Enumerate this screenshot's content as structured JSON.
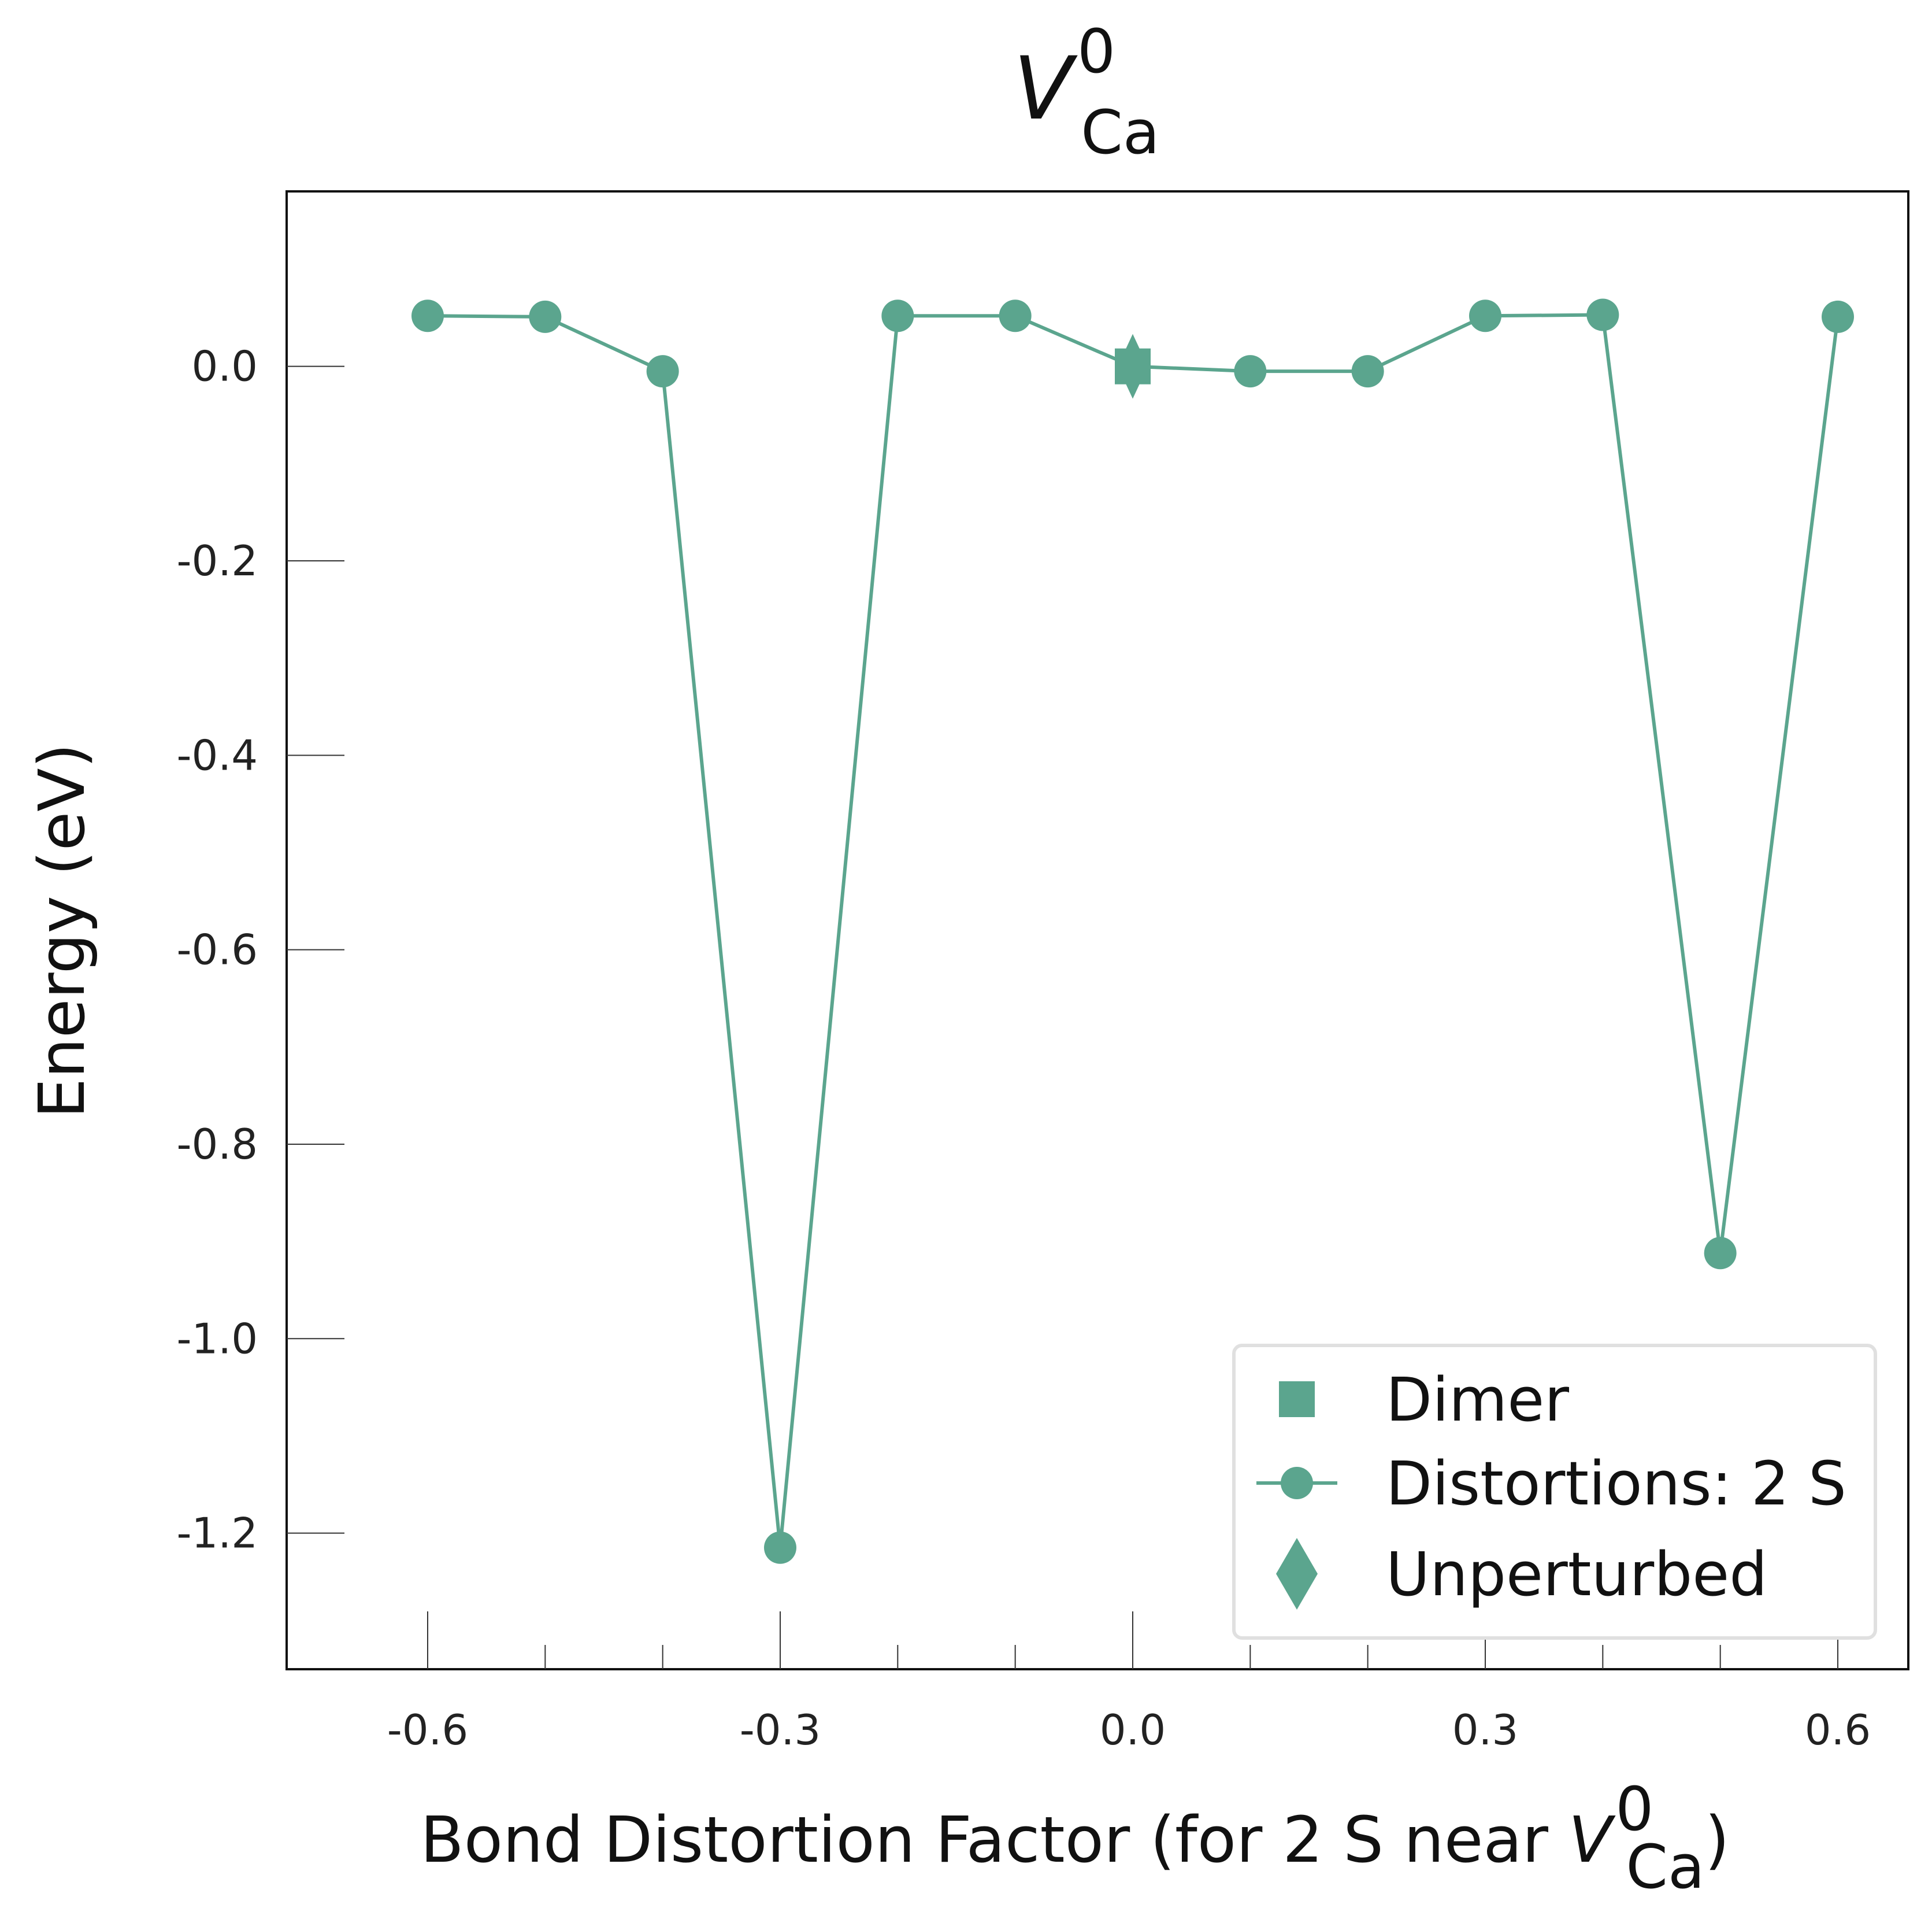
{
  "chart_data": {
    "type": "line",
    "title": {
      "main": "V",
      "sup": "0",
      "sub": "Ca"
    },
    "xlabel": {
      "text": "Bond Distortion Factor (for 2 S near ",
      "var": "V",
      "sup": "0",
      "sub": "Ca",
      "close": ")"
    },
    "ylabel": "Energy (eV)",
    "xlim": [
      -0.72,
      0.66
    ],
    "ylim": [
      -1.34,
      0.18
    ],
    "xticks": [
      -0.6,
      -0.3,
      0.0,
      0.3,
      0.6
    ],
    "xtick_labels": [
      "-0.6",
      "-0.3",
      "0.0",
      "0.3",
      "0.6"
    ],
    "xminor_ticks": [
      -0.5,
      -0.4,
      -0.2,
      -0.1,
      0.1,
      0.2,
      0.4,
      0.5
    ],
    "yticks": [
      0.0,
      -0.2,
      -0.4,
      -0.6,
      -0.8,
      -1.0,
      -1.2
    ],
    "ytick_labels": [
      "0.0",
      "-0.2",
      "-0.4",
      "-0.6",
      "-0.8",
      "-1.0",
      "-1.2"
    ],
    "grid": false,
    "legend_position": "bottom-right",
    "color": "#5ba58e",
    "series": [
      {
        "name": "Distortions: 2 S",
        "marker": "circle",
        "line": true,
        "x": [
          -0.6,
          -0.5,
          -0.4,
          -0.3,
          -0.2,
          -0.1,
          0.0,
          0.1,
          0.2,
          0.3,
          0.4,
          0.5,
          0.6
        ],
        "y": [
          0.052,
          0.051,
          -0.005,
          -1.215,
          0.052,
          0.052,
          0.0,
          -0.005,
          -0.005,
          0.052,
          0.053,
          -0.912,
          0.051
        ]
      },
      {
        "name": "Dimer",
        "marker": "square",
        "line": false,
        "x": [
          0.0
        ],
        "y": [
          0.0
        ]
      },
      {
        "name": "Unperturbed",
        "marker": "diamond",
        "line": false,
        "x": [
          0.0
        ],
        "y": [
          0.0
        ]
      }
    ],
    "legend": [
      {
        "label": "Dimer",
        "marker": "square"
      },
      {
        "label": "Distortions: 2 S",
        "marker": "circle-line"
      },
      {
        "label": "Unperturbed",
        "marker": "diamond"
      }
    ]
  }
}
